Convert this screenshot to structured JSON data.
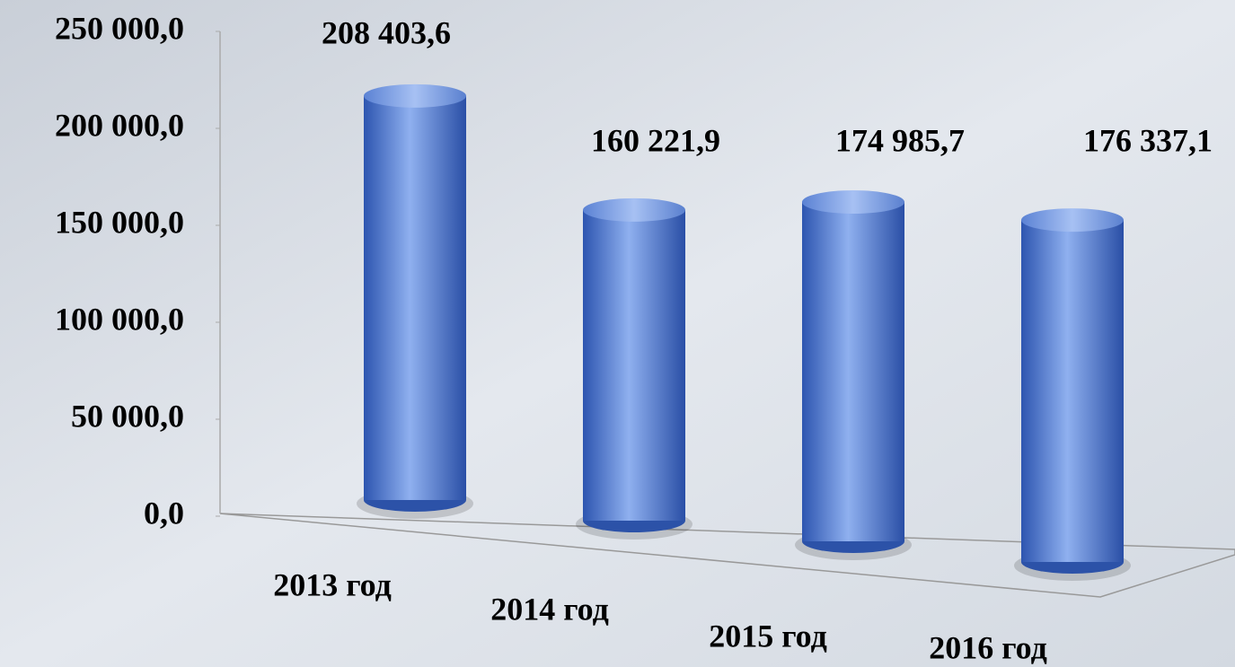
{
  "chart_data": {
    "type": "cylinder",
    "categories": [
      "2013 год",
      "2014 год",
      "2015 год",
      "2016 год"
    ],
    "values": [
      208403.6,
      160221.9,
      174985.7,
      176337.1
    ],
    "value_labels": [
      "208 403,6",
      "160 221,9",
      "174 985,7",
      "176 337,1"
    ],
    "color": "#4a74c9",
    "ylim": [
      0,
      250000
    ],
    "yticks": [
      {
        "value": 0,
        "label": "0,0"
      },
      {
        "value": 50000,
        "label": "50 000,0"
      },
      {
        "value": 100000,
        "label": "100 000,0"
      },
      {
        "value": 150000,
        "label": "150 000,0"
      },
      {
        "value": 200000,
        "label": "200 000,0"
      },
      {
        "value": 250000,
        "label": "250 000,0"
      }
    ]
  }
}
